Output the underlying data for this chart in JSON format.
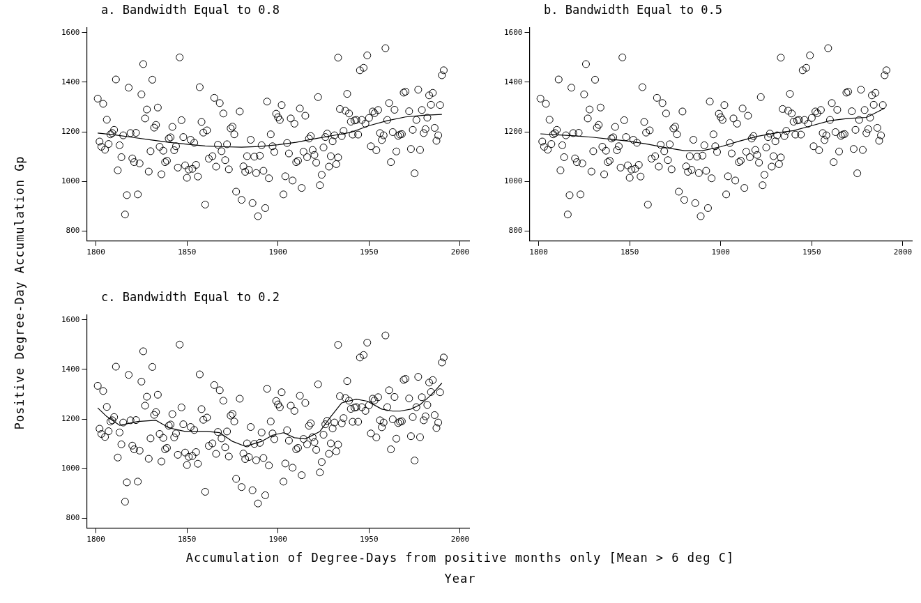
{
  "chart_data": [
    {
      "type": "scatter",
      "title": "a. Bandwidth Equal to 0.8",
      "ylabel": "Positive Degree-Day Accumulation Gp",
      "xlim": [
        1795,
        2005
      ],
      "ylim": [
        760,
        1620
      ],
      "xticks": [
        1800,
        1850,
        1900,
        1950,
        2000
      ],
      "yticks": [
        800,
        1000,
        1200,
        1400,
        1600
      ],
      "grid": false,
      "legend": false,
      "series": [
        {
          "type": "scatter",
          "marker": "circle",
          "color": "#000000",
          "x": [
            1801,
            1802,
            1803,
            1804,
            1805,
            1806,
            1807,
            1808,
            1809,
            1810,
            1811,
            1812,
            1813,
            1814,
            1815,
            1816,
            1817,
            1818,
            1819,
            1820,
            1821,
            1822,
            1823,
            1824,
            1825,
            1826,
            1827,
            1828,
            1829,
            1830,
            1831,
            1832,
            1833,
            1834,
            1835,
            1836,
            1837,
            1838,
            1839,
            1840,
            1841,
            1842,
            1843,
            1844,
            1845,
            1846,
            1847,
            1848,
            1849,
            1850,
            1851,
            1852,
            1853,
            1854,
            1855,
            1856,
            1857,
            1858,
            1859,
            1860,
            1861,
            1862,
            1864,
            1865,
            1866,
            1867,
            1868,
            1869,
            1870,
            1871,
            1872,
            1873,
            1874,
            1875,
            1876,
            1877,
            1879,
            1880,
            1881,
            1882,
            1883,
            1884,
            1885,
            1886,
            1887,
            1888,
            1889,
            1890,
            1891,
            1892,
            1893,
            1894,
            1895,
            1896,
            1897,
            1898,
            1899,
            1900,
            1901,
            1902,
            1903,
            1904,
            1905,
            1906,
            1907,
            1908,
            1909,
            1910,
            1911,
            1912,
            1913,
            1914,
            1915,
            1916,
            1917,
            1918,
            1919,
            1920,
            1921,
            1922,
            1923,
            1924,
            1925,
            1926,
            1927,
            1928,
            1929,
            1930,
            1931,
            1932,
            1933,
            1933,
            1934,
            1935,
            1936,
            1937,
            1938,
            1939,
            1940,
            1941,
            1942,
            1943,
            1944,
            1945,
            1946,
            1947,
            1948,
            1949,
            1950,
            1951,
            1952,
            1953,
            1954,
            1955,
            1956,
            1957,
            1958,
            1959,
            1960,
            1961,
            1962,
            1963,
            1964,
            1965,
            1966,
            1967,
            1968,
            1969,
            1970,
            1972,
            1973,
            1974,
            1975,
            1976,
            1977,
            1978,
            1979,
            1980,
            1981,
            1982,
            1983,
            1984,
            1985,
            1986,
            1987,
            1988,
            1989,
            1990,
            1991
          ],
          "values": [
            1334,
            1161,
            1140,
            1313,
            1128,
            1249,
            1151,
            1190,
            1195,
            1208,
            1411,
            1045,
            1146,
            1098,
            1186,
            867,
            945,
            1378,
            1195,
            1093,
            1078,
            1196,
            948,
            1073,
            1351,
            1473,
            1254,
            1290,
            1040,
            1122,
            1410,
            1217,
            1228,
            1298,
            1140,
            1029,
            1124,
            1078,
            1084,
            1173,
            1178,
            1220,
            1126,
            1142,
            1056,
            1500,
            1247,
            1179,
            1065,
            1015,
            1048,
            1168,
            1051,
            1156,
            1067,
            1020,
            1380,
            1240,
            1197,
            907,
            1206,
            1092,
            1102,
            1337,
            1060,
            1148,
            1316,
            1122,
            1274,
            1086,
            1150,
            1049,
            1214,
            1221,
            1190,
            959,
            1282,
            926,
            1061,
            1039,
            1102,
            1047,
            1168,
            913,
            1100,
            1034,
            860,
            1104,
            1146,
            1043,
            893,
            1322,
            1013,
            1190,
            1142,
            1119,
            1273,
            1259,
            1248,
            1308,
            948,
            1021,
            1155,
            1113,
            1254,
            1004,
            1233,
            1078,
            1084,
            1294,
            974,
            1120,
            1265,
            1098,
            1173,
            1183,
            1127,
            1107,
            1076,
            1340,
            985,
            1027,
            1137,
            1179,
            1193,
            1060,
            1102,
            1162,
            1186,
            1070,
            1097,
            1499,
            1292,
            1183,
            1204,
            1285,
            1353,
            1274,
            1241,
            1189,
            1246,
            1248,
            1189,
            1448,
            1248,
            1458,
            1233,
            1508,
            1256,
            1142,
            1282,
            1275,
            1126,
            1288,
            1195,
            1167,
            1186,
            1537,
            1248,
            1316,
            1078,
            1199,
            1289,
            1121,
            1184,
            1189,
            1191,
            1358,
            1362,
            1283,
            1131,
            1208,
            1033,
            1248,
            1370,
            1127,
            1288,
            1195,
            1211,
            1257,
            1347,
            1309,
            1357,
            1216,
            1164,
            1186,
            1308,
            1428,
            1448
          ]
        },
        {
          "type": "line",
          "marker": "none",
          "color": "#000000",
          "x": [
            1801,
            1810,
            1820,
            1830,
            1840,
            1850,
            1860,
            1870,
            1880,
            1890,
            1900,
            1910,
            1920,
            1930,
            1940,
            1950,
            1960,
            1970,
            1980,
            1990
          ],
          "values": [
            1195,
            1188,
            1178,
            1168,
            1158,
            1150,
            1143,
            1140,
            1138,
            1141,
            1148,
            1158,
            1172,
            1185,
            1198,
            1225,
            1245,
            1260,
            1267,
            1270
          ]
        }
      ]
    },
    {
      "type": "scatter",
      "title": "b. Bandwidth Equal to 0.5",
      "xlim": [
        1795,
        2005
      ],
      "ylim": [
        760,
        1620
      ],
      "xticks": [
        1800,
        1850,
        1900,
        1950,
        2000
      ],
      "yticks": [
        800,
        1000,
        1200,
        1400,
        1600
      ],
      "grid": false,
      "legend": false,
      "series": [
        {
          "type": "scatter",
          "marker": "circle",
          "color": "#000000",
          "x": [
            1801,
            1802,
            1803,
            1804,
            1805,
            1806,
            1807,
            1808,
            1809,
            1810,
            1811,
            1812,
            1813,
            1814,
            1815,
            1816,
            1817,
            1818,
            1819,
            1820,
            1821,
            1822,
            1823,
            1824,
            1825,
            1826,
            1827,
            1828,
            1829,
            1830,
            1831,
            1832,
            1833,
            1834,
            1835,
            1836,
            1837,
            1838,
            1839,
            1840,
            1841,
            1842,
            1843,
            1844,
            1845,
            1846,
            1847,
            1848,
            1849,
            1850,
            1851,
            1852,
            1853,
            1854,
            1855,
            1856,
            1857,
            1858,
            1859,
            1860,
            1861,
            1862,
            1864,
            1865,
            1866,
            1867,
            1868,
            1869,
            1870,
            1871,
            1872,
            1873,
            1874,
            1875,
            1876,
            1877,
            1879,
            1880,
            1881,
            1882,
            1883,
            1884,
            1885,
            1886,
            1887,
            1888,
            1889,
            1890,
            1891,
            1892,
            1893,
            1894,
            1895,
            1896,
            1897,
            1898,
            1899,
            1900,
            1901,
            1902,
            1903,
            1904,
            1905,
            1906,
            1907,
            1908,
            1909,
            1910,
            1911,
            1912,
            1913,
            1914,
            1915,
            1916,
            1917,
            1918,
            1919,
            1920,
            1921,
            1922,
            1923,
            1924,
            1925,
            1926,
            1927,
            1928,
            1929,
            1930,
            1931,
            1932,
            1933,
            1933,
            1934,
            1935,
            1936,
            1937,
            1938,
            1939,
            1940,
            1941,
            1942,
            1943,
            1944,
            1945,
            1946,
            1947,
            1948,
            1949,
            1950,
            1951,
            1952,
            1953,
            1954,
            1955,
            1956,
            1957,
            1958,
            1959,
            1960,
            1961,
            1962,
            1963,
            1964,
            1965,
            1966,
            1967,
            1968,
            1969,
            1970,
            1972,
            1973,
            1974,
            1975,
            1976,
            1977,
            1978,
            1979,
            1980,
            1981,
            1982,
            1983,
            1984,
            1985,
            1986,
            1987,
            1988,
            1989,
            1990,
            1991
          ],
          "values": [
            1334,
            1161,
            1140,
            1313,
            1128,
            1249,
            1151,
            1190,
            1195,
            1208,
            1411,
            1045,
            1146,
            1098,
            1186,
            867,
            945,
            1378,
            1195,
            1093,
            1078,
            1196,
            948,
            1073,
            1351,
            1473,
            1254,
            1290,
            1040,
            1122,
            1410,
            1217,
            1228,
            1298,
            1140,
            1029,
            1124,
            1078,
            1084,
            1173,
            1178,
            1220,
            1126,
            1142,
            1056,
            1500,
            1247,
            1179,
            1065,
            1015,
            1048,
            1168,
            1051,
            1156,
            1067,
            1020,
            1380,
            1240,
            1197,
            907,
            1206,
            1092,
            1102,
            1337,
            1060,
            1148,
            1316,
            1122,
            1274,
            1086,
            1150,
            1049,
            1214,
            1221,
            1190,
            959,
            1282,
            926,
            1061,
            1039,
            1102,
            1047,
            1168,
            913,
            1100,
            1034,
            860,
            1104,
            1146,
            1043,
            893,
            1322,
            1013,
            1190,
            1142,
            1119,
            1273,
            1259,
            1248,
            1308,
            948,
            1021,
            1155,
            1113,
            1254,
            1004,
            1233,
            1078,
            1084,
            1294,
            974,
            1120,
            1265,
            1098,
            1173,
            1183,
            1127,
            1107,
            1076,
            1340,
            985,
            1027,
            1137,
            1179,
            1193,
            1060,
            1102,
            1162,
            1186,
            1070,
            1097,
            1499,
            1292,
            1183,
            1204,
            1285,
            1353,
            1274,
            1241,
            1189,
            1246,
            1248,
            1189,
            1448,
            1248,
            1458,
            1233,
            1508,
            1256,
            1142,
            1282,
            1275,
            1126,
            1288,
            1195,
            1167,
            1186,
            1537,
            1248,
            1316,
            1078,
            1199,
            1289,
            1121,
            1184,
            1189,
            1191,
            1358,
            1362,
            1283,
            1131,
            1208,
            1033,
            1248,
            1370,
            1127,
            1288,
            1195,
            1211,
            1257,
            1347,
            1309,
            1357,
            1216,
            1164,
            1186,
            1308,
            1428,
            1448
          ]
        },
        {
          "type": "line",
          "marker": "none",
          "color": "#000000",
          "x": [
            1801,
            1810,
            1820,
            1830,
            1840,
            1850,
            1860,
            1870,
            1880,
            1890,
            1900,
            1910,
            1920,
            1930,
            1940,
            1950,
            1960,
            1970,
            1980,
            1990
          ],
          "values": [
            1192,
            1188,
            1184,
            1178,
            1170,
            1162,
            1150,
            1136,
            1124,
            1124,
            1140,
            1162,
            1182,
            1195,
            1205,
            1225,
            1245,
            1254,
            1258,
            1295
          ]
        }
      ]
    },
    {
      "type": "scatter",
      "title": "c. Bandwidth Equal to 0.2",
      "xlabel": "Year",
      "annotations": [
        "Accumulation of Degree-Days from positive months only [Mean > 6 deg C]"
      ],
      "xlim": [
        1795,
        2005
      ],
      "ylim": [
        760,
        1620
      ],
      "xticks": [
        1800,
        1850,
        1900,
        1950,
        2000
      ],
      "yticks": [
        800,
        1000,
        1200,
        1400,
        1600
      ],
      "grid": false,
      "legend": false,
      "series": [
        {
          "type": "scatter",
          "marker": "circle",
          "color": "#000000",
          "x": [
            1801,
            1802,
            1803,
            1804,
            1805,
            1806,
            1807,
            1808,
            1809,
            1810,
            1811,
            1812,
            1813,
            1814,
            1815,
            1816,
            1817,
            1818,
            1819,
            1820,
            1821,
            1822,
            1823,
            1824,
            1825,
            1826,
            1827,
            1828,
            1829,
            1830,
            1831,
            1832,
            1833,
            1834,
            1835,
            1836,
            1837,
            1838,
            1839,
            1840,
            1841,
            1842,
            1843,
            1844,
            1845,
            1846,
            1847,
            1848,
            1849,
            1850,
            1851,
            1852,
            1853,
            1854,
            1855,
            1856,
            1857,
            1858,
            1859,
            1860,
            1861,
            1862,
            1864,
            1865,
            1866,
            1867,
            1868,
            1869,
            1870,
            1871,
            1872,
            1873,
            1874,
            1875,
            1876,
            1877,
            1879,
            1880,
            1881,
            1882,
            1883,
            1884,
            1885,
            1886,
            1887,
            1888,
            1889,
            1890,
            1891,
            1892,
            1893,
            1894,
            1895,
            1896,
            1897,
            1898,
            1899,
            1900,
            1901,
            1902,
            1903,
            1904,
            1905,
            1906,
            1907,
            1908,
            1909,
            1910,
            1911,
            1912,
            1913,
            1914,
            1915,
            1916,
            1917,
            1918,
            1919,
            1920,
            1921,
            1922,
            1923,
            1924,
            1925,
            1926,
            1927,
            1928,
            1929,
            1930,
            1931,
            1932,
            1933,
            1933,
            1934,
            1935,
            1936,
            1937,
            1938,
            1939,
            1940,
            1941,
            1942,
            1943,
            1944,
            1945,
            1946,
            1947,
            1948,
            1949,
            1950,
            1951,
            1952,
            1953,
            1954,
            1955,
            1956,
            1957,
            1958,
            1959,
            1960,
            1961,
            1962,
            1963,
            1964,
            1965,
            1966,
            1967,
            1968,
            1969,
            1970,
            1972,
            1973,
            1974,
            1975,
            1976,
            1977,
            1978,
            1979,
            1980,
            1981,
            1982,
            1983,
            1984,
            1985,
            1986,
            1987,
            1988,
            1989,
            1990,
            1991
          ],
          "values": [
            1334,
            1161,
            1140,
            1313,
            1128,
            1249,
            1151,
            1190,
            1195,
            1208,
            1411,
            1045,
            1146,
            1098,
            1186,
            867,
            945,
            1378,
            1195,
            1093,
            1078,
            1196,
            948,
            1073,
            1351,
            1473,
            1254,
            1290,
            1040,
            1122,
            1410,
            1217,
            1228,
            1298,
            1140,
            1029,
            1124,
            1078,
            1084,
            1173,
            1178,
            1220,
            1126,
            1142,
            1056,
            1500,
            1247,
            1179,
            1065,
            1015,
            1048,
            1168,
            1051,
            1156,
            1067,
            1020,
            1380,
            1240,
            1197,
            907,
            1206,
            1092,
            1102,
            1337,
            1060,
            1148,
            1316,
            1122,
            1274,
            1086,
            1150,
            1049,
            1214,
            1221,
            1190,
            959,
            1282,
            926,
            1061,
            1039,
            1102,
            1047,
            1168,
            913,
            1100,
            1034,
            860,
            1104,
            1146,
            1043,
            893,
            1322,
            1013,
            1190,
            1142,
            1119,
            1273,
            1259,
            1248,
            1308,
            948,
            1021,
            1155,
            1113,
            1254,
            1004,
            1233,
            1078,
            1084,
            1294,
            974,
            1120,
            1265,
            1098,
            1173,
            1183,
            1127,
            1107,
            1076,
            1340,
            985,
            1027,
            1137,
            1179,
            1193,
            1060,
            1102,
            1162,
            1186,
            1070,
            1097,
            1499,
            1292,
            1183,
            1204,
            1285,
            1353,
            1274,
            1241,
            1189,
            1246,
            1248,
            1189,
            1448,
            1248,
            1458,
            1233,
            1508,
            1256,
            1142,
            1282,
            1275,
            1126,
            1288,
            1195,
            1167,
            1186,
            1537,
            1248,
            1316,
            1078,
            1199,
            1289,
            1121,
            1184,
            1189,
            1191,
            1358,
            1362,
            1283,
            1131,
            1208,
            1033,
            1248,
            1370,
            1127,
            1288,
            1195,
            1211,
            1257,
            1347,
            1309,
            1357,
            1216,
            1164,
            1186,
            1308,
            1428,
            1448
          ]
        },
        {
          "type": "line",
          "marker": "none",
          "color": "#000000",
          "x": [
            1801,
            1806,
            1813,
            1823,
            1833,
            1840,
            1849,
            1861,
            1868,
            1875,
            1882,
            1891,
            1897,
            1903,
            1909,
            1915,
            1923,
            1929,
            1935,
            1943,
            1949,
            1957,
            1963,
            1967,
            1973,
            1978,
            1983,
            1987,
            1990
          ],
          "values": [
            1245,
            1210,
            1175,
            1190,
            1195,
            1165,
            1150,
            1150,
            1145,
            1110,
            1090,
            1110,
            1135,
            1145,
            1125,
            1120,
            1150,
            1210,
            1265,
            1280,
            1272,
            1240,
            1232,
            1232,
            1240,
            1258,
            1290,
            1320,
            1345
          ]
        }
      ]
    }
  ]
}
